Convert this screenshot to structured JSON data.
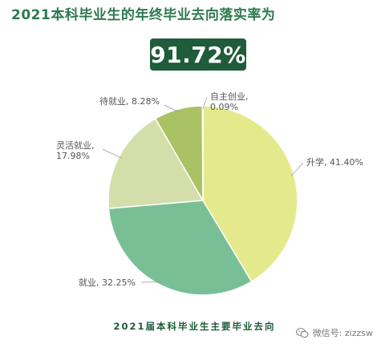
{
  "header": {
    "title": "2021本科毕业生的年终毕业去向落实率为"
  },
  "rate_box": {
    "value": "91.72%"
  },
  "caption": "2021届本科毕业生主要毕业去向",
  "watermark": {
    "text": "微信号: zizzsw"
  },
  "colors": {
    "title": "#2d7a4e",
    "box": "#1f5c3a",
    "slices": [
      "#e4ea8c",
      "#79bf96",
      "#d4deaa",
      "#a9c264",
      "#c6d8a0"
    ]
  },
  "chart_data": {
    "type": "pie",
    "slices": [
      {
        "name": "升学",
        "value": 41.4,
        "label": "升学, 41.40%"
      },
      {
        "name": "就业",
        "value": 32.25,
        "label": "就业, 32.25%"
      },
      {
        "name": "灵活就业",
        "value": 17.98,
        "label": "灵活就业,\n17.98%"
      },
      {
        "name": "待就业",
        "value": 8.28,
        "label": "待就业, 8.28%"
      },
      {
        "name": "自主创业",
        "value": 0.09,
        "label": "自主创业,\n0.09%"
      }
    ]
  }
}
